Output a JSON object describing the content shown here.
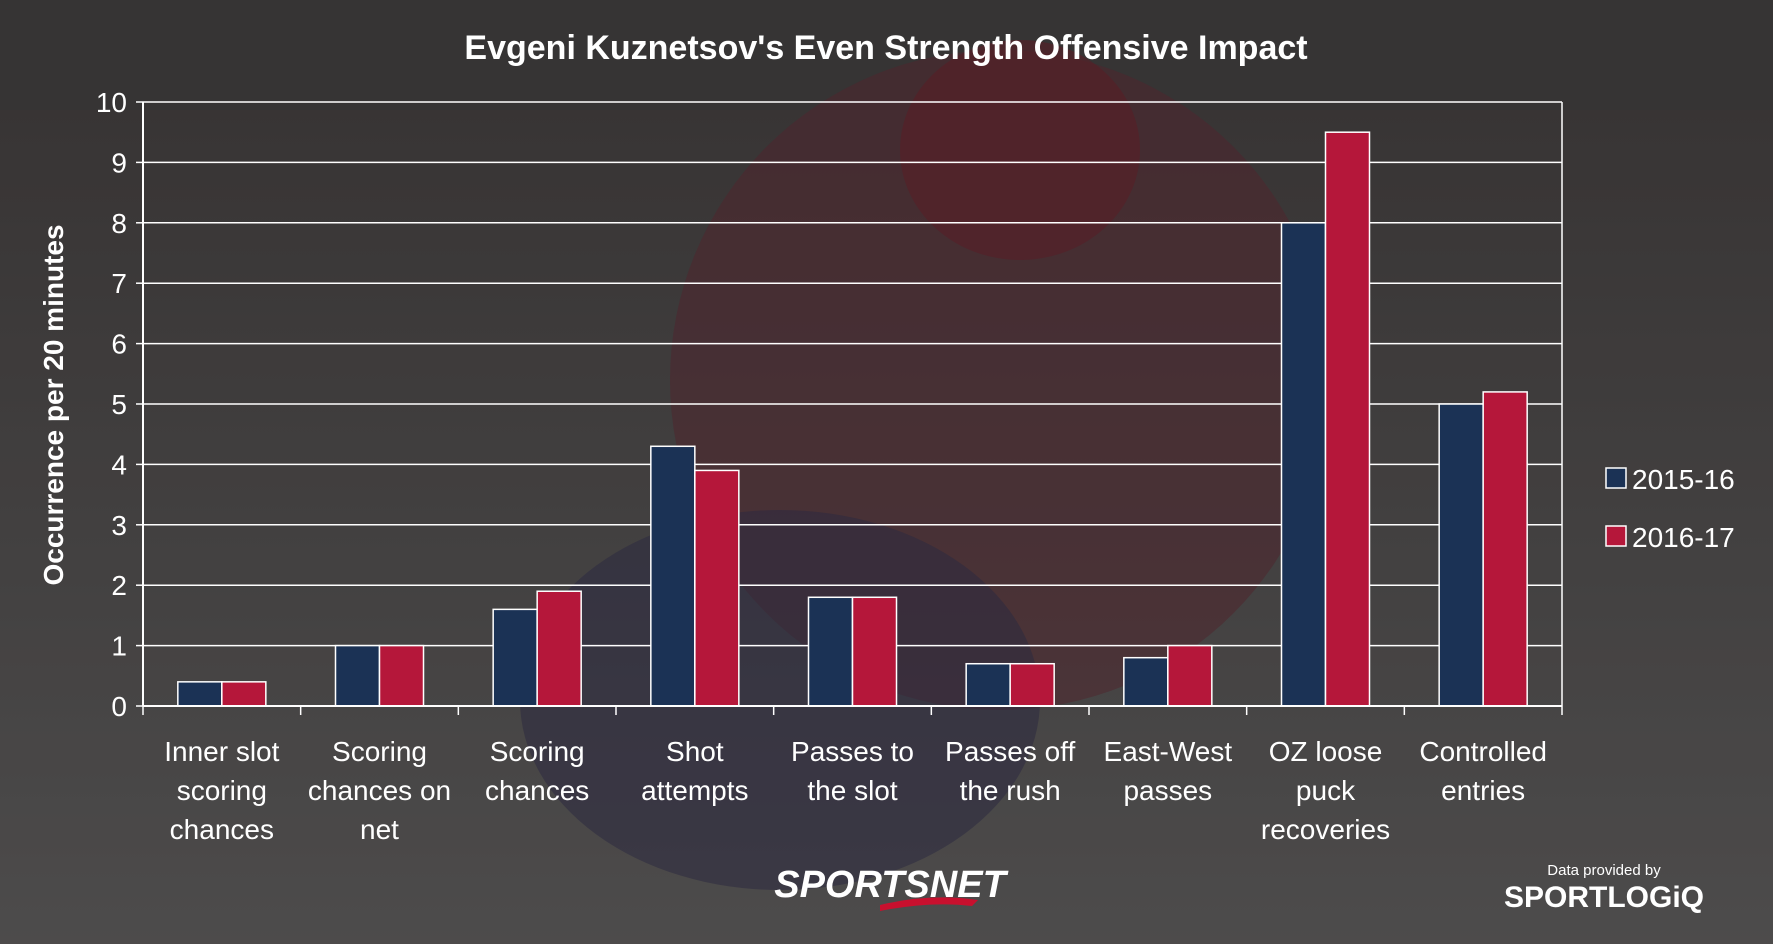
{
  "colors": {
    "series_2015": "#1b3255",
    "series_2016": "#b5173a",
    "grid": "#ffffff",
    "text": "#ffffff"
  },
  "branding": {
    "left_logo": "SPORTSNET",
    "credit_caption": "Data provided by",
    "right_logo": "SPORTLOGiQ"
  },
  "chart_data": {
    "type": "bar",
    "title": "Evgeni Kuznetsov's Even Strength Offensive Impact",
    "ylabel": "Occurrence per 20 minutes",
    "xlabel": "",
    "ylim": [
      0,
      10
    ],
    "yticks": [
      "0",
      "1",
      "2",
      "3",
      "4",
      "5",
      "6",
      "7",
      "8",
      "9",
      "10"
    ],
    "grid": true,
    "legend_position": "right",
    "categories": [
      [
        "Inner slot",
        "scoring",
        "chances"
      ],
      [
        "Scoring",
        "chances on",
        "net"
      ],
      [
        "Scoring",
        "chances"
      ],
      [
        "Shot",
        "attempts"
      ],
      [
        "Passes to",
        "the slot"
      ],
      [
        "Passes off",
        "the rush"
      ],
      [
        "East-West",
        "passes"
      ],
      [
        "OZ loose",
        "puck",
        "recoveries"
      ],
      [
        "Controlled",
        "entries"
      ]
    ],
    "series": [
      {
        "name": "2015-16",
        "values": [
          0.4,
          1.0,
          1.6,
          4.3,
          1.8,
          0.7,
          0.8,
          8.0,
          5.0
        ]
      },
      {
        "name": "2016-17",
        "values": [
          0.4,
          1.0,
          1.9,
          3.9,
          1.8,
          0.7,
          1.0,
          9.5,
          5.2
        ]
      }
    ]
  }
}
